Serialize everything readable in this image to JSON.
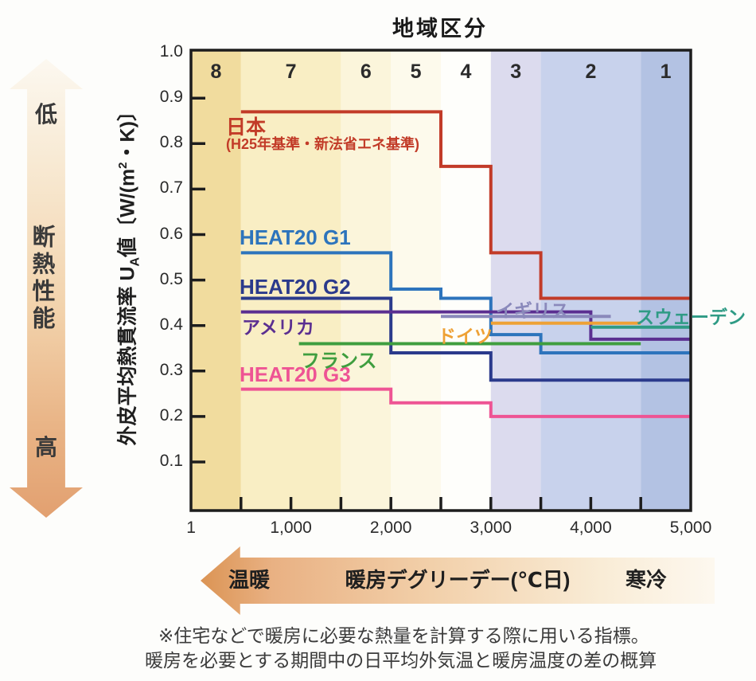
{
  "title": "地域区分",
  "y_axis": {
    "label_full": "外皮平均熱貫流率 UA値〔W/(m²・K)〕",
    "label_part1": "外皮平均熱貫流率 U",
    "label_sub": "A",
    "label_part2": "値〔W/(m",
    "label_sup": "2",
    "label_part3": "・K)〕",
    "ticks": [
      {
        "value": 1.0,
        "label": "1.0"
      },
      {
        "value": 0.9,
        "label": "0.9"
      },
      {
        "value": 0.8,
        "label": "0.8"
      },
      {
        "value": 0.7,
        "label": "0.7"
      },
      {
        "value": 0.6,
        "label": "0.6"
      },
      {
        "value": 0.5,
        "label": "0.5"
      },
      {
        "value": 0.4,
        "label": "0.4"
      },
      {
        "value": 0.3,
        "label": "0.3"
      },
      {
        "value": 0.2,
        "label": "0.2"
      },
      {
        "value": 0.1,
        "label": "0.1"
      }
    ]
  },
  "x_axis": {
    "ticks": [
      {
        "value": 1,
        "label": "1"
      },
      {
        "value": 1000,
        "label": "1,000"
      },
      {
        "value": 2000,
        "label": "2,000"
      },
      {
        "value": 3000,
        "label": "3,000"
      },
      {
        "value": 4000,
        "label": "4,000"
      },
      {
        "value": 5000,
        "label": "5,000"
      }
    ],
    "minor_tick_values": [
      500,
      1000,
      1500,
      2000,
      2500,
      3000,
      3500,
      4000,
      4500
    ]
  },
  "zones": [
    {
      "zone": "8",
      "from": 0,
      "to": 500,
      "color": "#f1dc9e"
    },
    {
      "zone": "7",
      "from": 500,
      "to": 1500,
      "color": "#f9eec4"
    },
    {
      "zone": "6",
      "from": 1500,
      "to": 2000,
      "color": "#fbf5db"
    },
    {
      "zone": "5",
      "from": 2000,
      "to": 2500,
      "color": "#fdfaec"
    },
    {
      "zone": "4",
      "from": 2500,
      "to": 3000,
      "color": "#fefefb"
    },
    {
      "zone": "3",
      "from": 3000,
      "to": 3500,
      "color": "#dcdbee"
    },
    {
      "zone": "2",
      "from": 3500,
      "to": 4500,
      "color": "#c8d2ec"
    },
    {
      "zone": "1",
      "from": 4500,
      "to": 5000,
      "color": "#b3c2e3"
    }
  ],
  "chart_data": {
    "type": "line",
    "title": "地域区分",
    "xlabel": "暖房デグリーデー(℃日)",
    "ylabel": "外皮平均熱貫流率 UA値〔W/(m²・K)〕",
    "x_range": [
      0,
      5000
    ],
    "y_range_shown": [
      0.1,
      1.0
    ],
    "grid": false,
    "note": "steps are [from_degree_day, to_degree_day, UA_value]",
    "series": [
      {
        "id": "japan",
        "name": "日本",
        "subtitle": "(H25年基準・新法省エネ基準)",
        "color": "#c23b28",
        "steps": [
          [
            500,
            2500,
            0.87
          ],
          [
            2500,
            3000,
            0.75
          ],
          [
            3000,
            3500,
            0.56
          ],
          [
            3500,
            5000,
            0.46
          ]
        ]
      },
      {
        "id": "heat20-g1",
        "name": "HEAT20 G1",
        "color": "#2d74bc",
        "steps": [
          [
            500,
            2000,
            0.56
          ],
          [
            2000,
            2500,
            0.48
          ],
          [
            2500,
            3000,
            0.46
          ],
          [
            3000,
            3500,
            0.38
          ],
          [
            3500,
            5000,
            0.34
          ]
        ]
      },
      {
        "id": "heat20-g2",
        "name": "HEAT20 G2",
        "color": "#2b3a8c",
        "steps": [
          [
            500,
            2000,
            0.46
          ],
          [
            2000,
            3000,
            0.34
          ],
          [
            3000,
            5000,
            0.28
          ]
        ]
      },
      {
        "id": "heat20-g3",
        "name": "HEAT20 G3",
        "color": "#ee5494",
        "steps": [
          [
            500,
            2000,
            0.26
          ],
          [
            2000,
            3000,
            0.23
          ],
          [
            3000,
            5000,
            0.2
          ]
        ]
      },
      {
        "id": "usa",
        "name": "アメリカ",
        "color": "#5b2f91",
        "steps": [
          [
            500,
            4000,
            0.43
          ],
          [
            4000,
            5000,
            0.37
          ]
        ]
      },
      {
        "id": "uk",
        "name": "イギリス",
        "color": "#8a89bb",
        "steps": [
          [
            2500,
            4200,
            0.42
          ]
        ]
      },
      {
        "id": "germany",
        "name": "ドイツ",
        "color": "#eea136",
        "y_nudge": -3,
        "steps": [
          [
            3000,
            4500,
            0.4
          ]
        ]
      },
      {
        "id": "france",
        "name": "フランス",
        "color": "#3f9e3f",
        "steps": [
          [
            1080,
            4500,
            0.36
          ]
        ]
      },
      {
        "id": "sweden",
        "name": "スウェーデン",
        "color": "#2f9b85",
        "y_nudge": 2,
        "steps": [
          [
            4000,
            5000,
            0.4
          ]
        ]
      }
    ]
  },
  "left_arrow": {
    "top_label": "低",
    "middle_label": "断熱性能",
    "bottom_label": "高"
  },
  "bottom_arrow": {
    "left_label": "温暖",
    "center_label": "暖房デグリーデー(℃日)",
    "right_label": "寒冷"
  },
  "footnote": {
    "line1": "※住宅などで暖房に必要な熱量を計算する際に用いる指標。",
    "line2": "暖房を必要とする期間中の日平均外気温と暖房温度の差の概算"
  }
}
